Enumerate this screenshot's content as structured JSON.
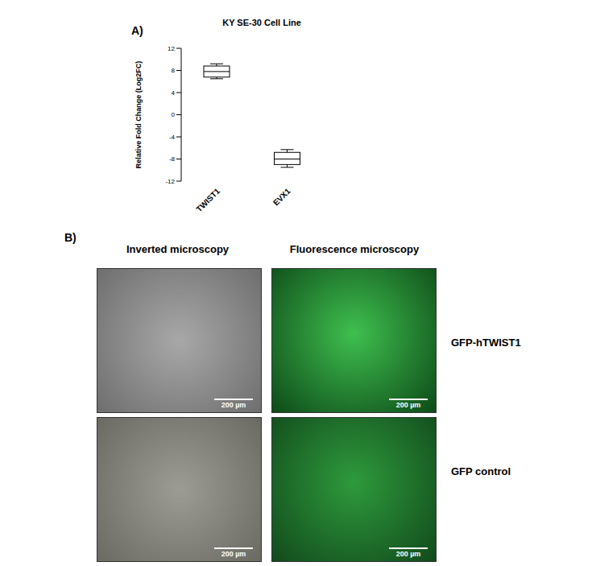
{
  "chart_data": {
    "type": "box",
    "title": "KY SE-30 Cell Line",
    "y_label": "Relative Fold Change (Log2FC)",
    "categories": [
      "TWIST1",
      "EVX1"
    ],
    "boxes": [
      {
        "min": 6.5,
        "q1": 6.8,
        "median": 7.8,
        "q3": 8.8,
        "max": 9.2
      },
      {
        "min": -9.5,
        "q1": -9.0,
        "median": -8.0,
        "q3": -6.8,
        "max": -6.3
      }
    ],
    "color": "#000000",
    "ylim": [
      -12,
      12
    ],
    "yticks": [
      -12,
      -8,
      -4,
      0,
      4,
      8,
      12
    ],
    "grid": false
  },
  "panel_labels": [
    "A)",
    "B)"
  ],
  "microscopy": {
    "columns": [
      "Inverted microscopy",
      "Fluorescence microscopy"
    ],
    "rows": [
      "GFP-hTWIST1",
      "GFP control"
    ],
    "scale_bar": "200 µm"
  }
}
